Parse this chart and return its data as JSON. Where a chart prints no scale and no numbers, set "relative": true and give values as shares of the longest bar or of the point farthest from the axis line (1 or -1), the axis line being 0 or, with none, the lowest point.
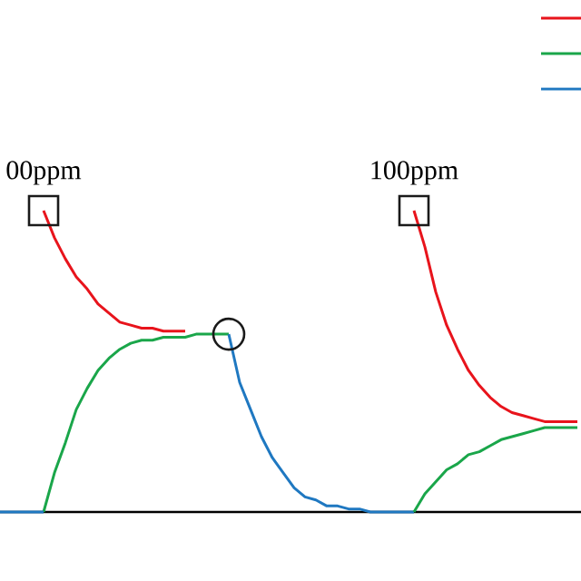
{
  "chart_data": {
    "type": "line",
    "relative": true,
    "line_style": "solid",
    "categories": [
      null,
      null,
      null,
      null,
      null,
      null,
      null,
      null,
      null,
      null,
      null,
      null,
      null,
      null,
      null,
      null,
      null,
      null,
      null,
      null,
      null,
      null,
      null,
      null,
      null,
      null,
      null,
      null,
      null,
      null,
      null,
      null,
      null,
      null,
      null,
      null,
      null,
      null,
      null,
      null,
      null,
      null,
      null,
      null,
      null,
      null,
      null,
      null,
      null,
      null,
      null,
      null,
      null,
      null
    ],
    "annotations": [
      "00ppm",
      "100ppm"
    ],
    "series": [
      {
        "color": "#1aa64a",
        "values": [
          null,
          null,
          null,
          null,
          0,
          0.13,
          0.23,
          0.34,
          0.41,
          0.47,
          0.51,
          0.54,
          0.56,
          0.57,
          0.57,
          0.58,
          0.58,
          0.58,
          0.59,
          0.59,
          0.59,
          0.59,
          null,
          null,
          null,
          null,
          null,
          null,
          null,
          null,
          null,
          null,
          null,
          null,
          null,
          null,
          null,
          null,
          null,
          null,
          null,
          null,
          null,
          null,
          null,
          null,
          null,
          null,
          null,
          null,
          null,
          null,
          null,
          null
        ]
      },
      {
        "color": "#e8141c",
        "values": [
          null,
          null,
          null,
          null,
          1.0,
          0.91,
          0.84,
          0.78,
          0.74,
          0.69,
          0.66,
          0.63,
          0.62,
          0.61,
          0.61,
          0.6,
          0.6,
          0.6,
          null,
          null,
          null,
          null,
          null,
          null,
          null,
          null,
          null,
          null,
          null,
          null,
          null,
          null,
          null,
          null,
          null,
          null,
          null,
          null,
          null,
          null,
          null,
          null,
          null,
          null,
          null,
          null,
          null,
          null,
          null,
          null,
          null,
          null,
          null,
          null
        ]
      },
      {
        "color": "#1f78c1",
        "values": [
          0,
          0,
          0,
          0,
          0,
          null,
          null,
          null,
          null,
          null,
          null,
          null,
          null,
          null,
          null,
          null,
          null,
          null,
          null,
          null,
          null,
          null,
          null,
          null,
          null,
          null,
          null,
          null,
          null,
          null,
          null,
          null,
          null,
          null,
          null,
          null,
          null,
          null,
          null,
          null,
          null,
          null,
          null,
          null,
          null,
          null,
          null,
          null,
          null,
          null,
          null,
          null,
          null,
          null
        ]
      },
      {
        "color": "#1f78c1",
        "values": [
          null,
          null,
          null,
          null,
          null,
          null,
          null,
          null,
          null,
          null,
          null,
          null,
          null,
          null,
          null,
          null,
          null,
          null,
          null,
          null,
          null,
          0.59,
          0.43,
          0.34,
          0.25,
          0.18,
          0.13,
          0.08,
          0.05,
          0.04,
          0.02,
          0.02,
          0.01,
          0.01,
          0,
          0,
          0,
          0,
          0,
          null,
          null,
          null,
          null,
          null,
          null,
          null,
          null,
          null,
          null,
          null,
          null,
          null,
          null,
          null
        ]
      },
      {
        "color": "#1aa64a",
        "values": [
          null,
          null,
          null,
          null,
          null,
          null,
          null,
          null,
          null,
          null,
          null,
          null,
          null,
          null,
          null,
          null,
          null,
          null,
          null,
          null,
          null,
          null,
          null,
          null,
          null,
          null,
          null,
          null,
          null,
          null,
          null,
          null,
          null,
          null,
          null,
          null,
          null,
          null,
          0,
          0.06,
          0.1,
          0.14,
          0.16,
          0.19,
          0.2,
          0.22,
          0.24,
          0.25,
          0.26,
          0.27,
          0.28,
          0.28,
          0.28,
          0.28
        ]
      },
      {
        "color": "#e8141c",
        "values": [
          null,
          null,
          null,
          null,
          null,
          null,
          null,
          null,
          null,
          null,
          null,
          null,
          null,
          null,
          null,
          null,
          null,
          null,
          null,
          null,
          null,
          null,
          null,
          null,
          null,
          null,
          null,
          null,
          null,
          null,
          null,
          null,
          null,
          null,
          null,
          null,
          null,
          null,
          1.0,
          0.88,
          0.73,
          0.62,
          0.54,
          0.47,
          0.42,
          0.38,
          0.35,
          0.33,
          0.32,
          0.31,
          0.3,
          0.3,
          0.3,
          0.3
        ]
      }
    ]
  }
}
